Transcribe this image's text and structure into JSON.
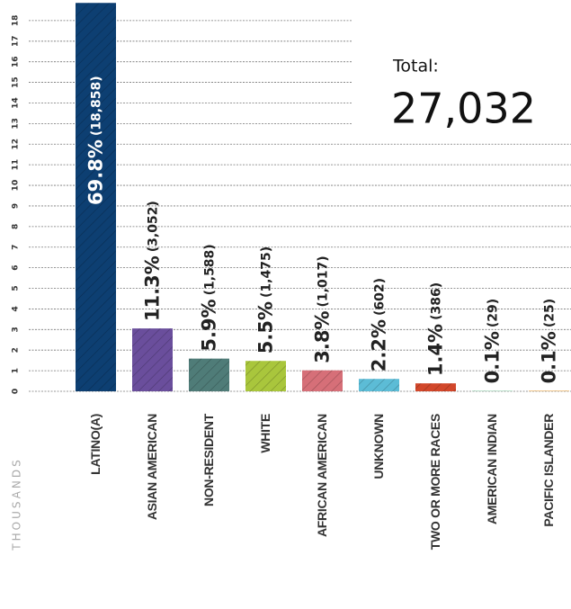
{
  "chart_data": {
    "type": "bar",
    "y_axis_label": "THOUSANDS",
    "annotation_label": "Total:",
    "annotation_value": "27,032",
    "categories": [
      "LATINO(A)",
      "ASIAN AMERICAN",
      "NON-RESIDENT",
      "WHITE",
      "AFRICAN AMERICAN",
      "UNKNOWN",
      "TWO OR MORE RACES",
      "AMERICAN INDIAN",
      "PACIFIC ISLANDER"
    ],
    "values": [
      18.858,
      3.052,
      1.588,
      1.475,
      1.017,
      0.602,
      0.386,
      0.029,
      0.025
    ],
    "value_labels": [
      "(18,858)",
      "(3,052)",
      "(1,588)",
      "(1,475)",
      "(1,017)",
      "(602)",
      "(386)",
      "(29)",
      "(25)"
    ],
    "share_labels": [
      "69.8%",
      "11.3%",
      "5.9%",
      "5.5%",
      "3.8%",
      "2.2%",
      "1.4%",
      "0.1%",
      "0.1%"
    ],
    "colors": [
      "#0d3f72",
      "#6a4e9c",
      "#4f7c78",
      "#a9c63c",
      "#d66f78",
      "#5cbcd6",
      "#d2472b",
      "#9ed4b6",
      "#e7a13c"
    ],
    "ylim": [
      0,
      19
    ],
    "yticks": [
      0,
      1,
      2,
      3,
      4,
      5,
      6,
      7,
      8,
      9,
      10,
      11,
      12,
      13,
      14,
      15,
      16,
      17,
      18
    ],
    "grid": true
  }
}
